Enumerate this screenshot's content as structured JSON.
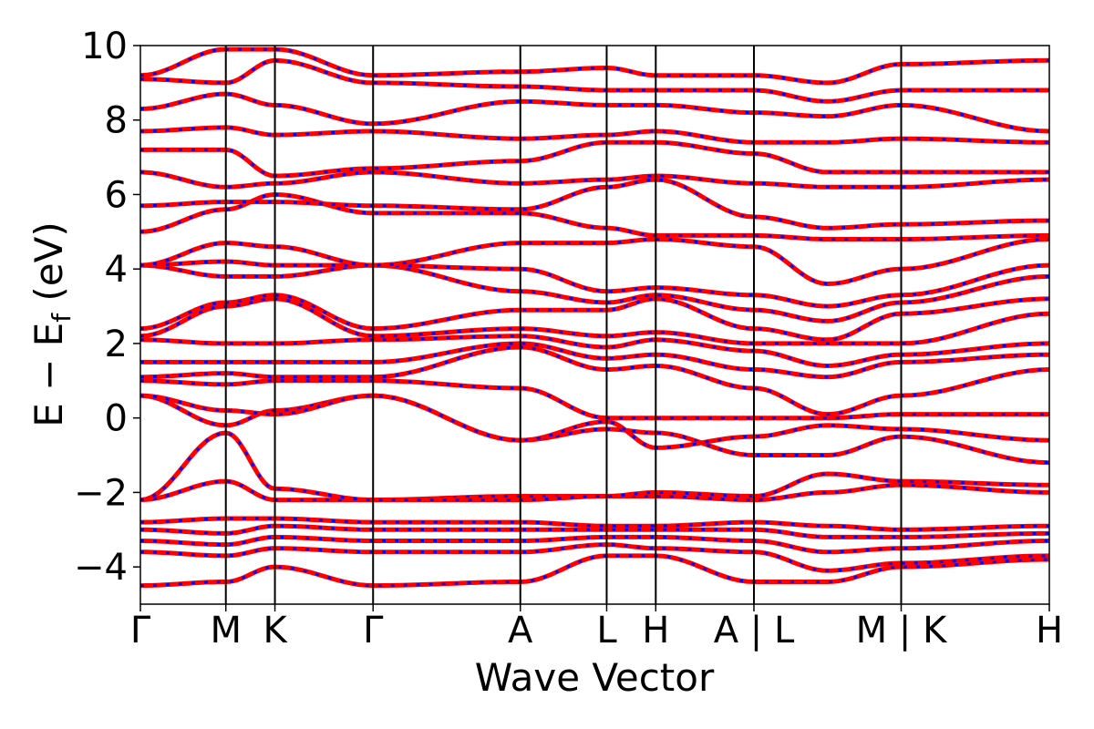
{
  "chart_data": {
    "type": "line",
    "title": "",
    "xlabel": "Wave Vector",
    "ylabel_main": "E − E",
    "ylabel_sub": "f",
    "ylabel_unit": " (eV)",
    "ylim": [
      -5,
      10
    ],
    "yticks": [
      {
        "value": -4,
        "label": "−4"
      },
      {
        "value": -2,
        "label": "−2"
      },
      {
        "value": 0,
        "label": "0"
      },
      {
        "value": 2,
        "label": "2"
      },
      {
        "value": 4,
        "label": "4"
      },
      {
        "value": 6,
        "label": "6"
      },
      {
        "value": 8,
        "label": "8"
      },
      {
        "value": 10,
        "label": "10"
      }
    ],
    "kpath": [
      {
        "x": 0.0,
        "label": "Γ"
      },
      {
        "x": 0.094,
        "label": "M"
      },
      {
        "x": 0.148,
        "label": "K"
      },
      {
        "x": 0.256,
        "label": "Γ"
      },
      {
        "x": 0.418,
        "label": "A"
      },
      {
        "x": 0.513,
        "label": "L"
      },
      {
        "x": 0.567,
        "label": "H"
      },
      {
        "x": 0.675,
        "label": "A | L"
      },
      {
        "x": 0.837,
        "label": "M | K"
      },
      {
        "x": 1.0,
        "label": "H"
      }
    ],
    "grid": false,
    "series_styles": [
      {
        "color": "#ff0000",
        "style": "solid"
      },
      {
        "color": "#0000ff",
        "style": "dashed"
      }
    ],
    "band_anchor_energies": [
      [
        -4.5,
        -4.4,
        -4.0,
        -4.5,
        -4.4,
        -3.7,
        -3.7,
        -4.4,
        -4.4,
        -4.0,
        -3.8
      ],
      [
        -3.6,
        -3.7,
        -3.5,
        -3.6,
        -3.6,
        -3.4,
        -3.5,
        -3.6,
        -4.1,
        -3.9,
        -3.7
      ],
      [
        -3.3,
        -3.4,
        -3.2,
        -3.3,
        -3.3,
        -3.2,
        -3.2,
        -3.3,
        -3.6,
        -3.5,
        -3.3
      ],
      [
        -3.0,
        -3.1,
        -2.9,
        -3.0,
        -3.0,
        -3.0,
        -3.0,
        -3.0,
        -3.2,
        -3.2,
        -3.1
      ],
      [
        -2.8,
        -2.7,
        -2.7,
        -2.8,
        -2.8,
        -2.9,
        -2.9,
        -2.8,
        -2.9,
        -3.0,
        -2.9
      ],
      [
        -2.2,
        -1.7,
        -2.2,
        -2.2,
        -2.1,
        -2.1,
        -2.1,
        -2.2,
        -2.0,
        -1.8,
        -2.0
      ],
      [
        -2.2,
        -0.4,
        -1.9,
        -2.2,
        -2.2,
        -2.1,
        -2.0,
        -2.1,
        -1.5,
        -1.7,
        -1.8
      ],
      [
        0.6,
        -0.2,
        0.2,
        0.6,
        -0.6,
        -0.3,
        -0.4,
        -1.0,
        -1.0,
        -0.5,
        -1.2
      ],
      [
        0.6,
        0.2,
        0.1,
        0.6,
        -0.6,
        -0.1,
        -0.8,
        -0.5,
        -0.2,
        -0.3,
        -0.6
      ],
      [
        1.0,
        0.9,
        1.0,
        1.0,
        0.8,
        0.0,
        0.0,
        0.0,
        0.0,
        0.1,
        0.1
      ],
      [
        1.1,
        1.2,
        1.1,
        1.1,
        1.9,
        1.3,
        1.4,
        0.8,
        0.1,
        0.6,
        1.3
      ],
      [
        1.5,
        1.5,
        1.5,
        1.5,
        2.0,
        1.6,
        1.7,
        1.3,
        1.1,
        1.5,
        1.7
      ],
      [
        2.1,
        2.0,
        2.0,
        2.1,
        2.2,
        1.9,
        2.1,
        1.8,
        1.4,
        1.7,
        2.0
      ],
      [
        2.2,
        3.0,
        3.2,
        2.2,
        2.4,
        2.2,
        2.3,
        2.0,
        2.0,
        2.0,
        2.8
      ],
      [
        2.4,
        3.1,
        3.3,
        2.4,
        2.9,
        2.9,
        3.2,
        2.4,
        2.1,
        2.8,
        3.2
      ],
      [
        4.1,
        3.8,
        3.8,
        4.1,
        3.4,
        3.1,
        3.3,
        2.9,
        2.6,
        3.1,
        3.8
      ],
      [
        4.1,
        4.2,
        4.1,
        4.1,
        4.0,
        3.4,
        3.5,
        3.3,
        3.0,
        3.3,
        4.1
      ],
      [
        4.1,
        4.7,
        4.6,
        4.1,
        4.7,
        4.7,
        4.8,
        4.6,
        3.6,
        4.0,
        4.8
      ],
      [
        5.0,
        5.6,
        6.0,
        5.5,
        5.5,
        5.1,
        4.9,
        4.9,
        4.8,
        4.8,
        4.9
      ],
      [
        5.7,
        5.8,
        5.8,
        5.7,
        5.6,
        6.2,
        6.4,
        5.4,
        5.1,
        5.2,
        5.3
      ],
      [
        6.6,
        6.2,
        6.3,
        6.6,
        6.3,
        6.4,
        6.5,
        6.3,
        6.2,
        6.2,
        6.4
      ],
      [
        7.2,
        7.2,
        6.5,
        6.7,
        6.9,
        7.4,
        7.4,
        7.1,
        6.6,
        6.6,
        6.6
      ],
      [
        7.7,
        7.8,
        7.6,
        7.7,
        7.5,
        7.6,
        7.7,
        7.4,
        7.4,
        7.5,
        7.4
      ],
      [
        8.3,
        8.7,
        8.4,
        7.9,
        8.5,
        8.4,
        8.4,
        8.2,
        8.1,
        8.4,
        7.7
      ],
      [
        9.1,
        9.0,
        9.6,
        9.0,
        8.9,
        8.8,
        8.8,
        8.8,
        8.5,
        8.8,
        8.8
      ],
      [
        9.2,
        9.9,
        9.9,
        9.2,
        9.3,
        9.4,
        9.2,
        9.2,
        9.0,
        9.5,
        9.6
      ]
    ]
  }
}
